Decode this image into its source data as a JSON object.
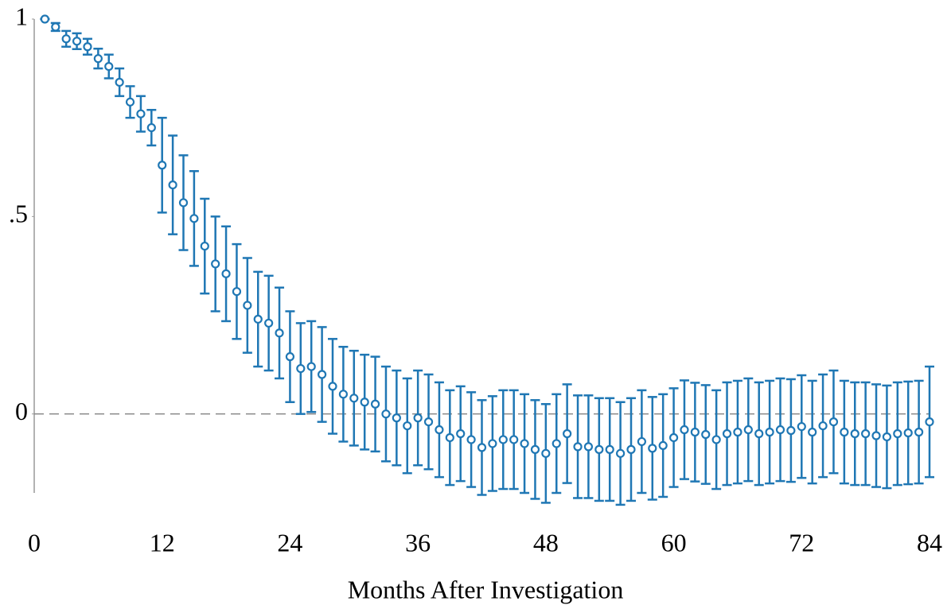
{
  "chart_data": {
    "type": "errorbar",
    "x_label": "Months After Investigation",
    "x": [
      1,
      2,
      3,
      4,
      5,
      6,
      7,
      8,
      9,
      10,
      11,
      12,
      13,
      14,
      15,
      16,
      17,
      18,
      19,
      20,
      21,
      22,
      23,
      24,
      25,
      26,
      27,
      28,
      29,
      30,
      31,
      32,
      33,
      34,
      35,
      36,
      37,
      38,
      39,
      40,
      41,
      42,
      43,
      44,
      45,
      46,
      47,
      48,
      49,
      50,
      51,
      52,
      53,
      54,
      55,
      56,
      57,
      58,
      59,
      60,
      61,
      62,
      63,
      64,
      65,
      66,
      67,
      68,
      69,
      70,
      71,
      72,
      73,
      74,
      75,
      76,
      77,
      78,
      79,
      80,
      81,
      82,
      83,
      84
    ],
    "values": [
      1,
      0.98,
      0.95,
      0.944,
      0.93,
      0.9,
      0.88,
      0.84,
      0.79,
      0.76,
      0.725,
      0.63,
      0.58,
      0.535,
      0.495,
      0.425,
      0.38,
      0.355,
      0.31,
      0.275,
      0.24,
      0.23,
      0.205,
      0.145,
      0.115,
      0.12,
      0.1,
      0.07,
      0.05,
      0.04,
      0.03,
      0.025,
      0,
      -0.01,
      -0.03,
      -0.01,
      -0.02,
      -0.04,
      -0.06,
      -0.05,
      -0.065,
      -0.085,
      -0.075,
      -0.065,
      -0.065,
      -0.075,
      -0.09,
      -0.1,
      -0.075,
      -0.05,
      -0.083,
      -0.083,
      -0.09,
      -0.09,
      -0.1,
      -0.09,
      -0.07,
      -0.087,
      -0.08,
      -0.06,
      -0.04,
      -0.046,
      -0.052,
      -0.065,
      -0.05,
      -0.046,
      -0.04,
      -0.05,
      -0.046,
      -0.04,
      -0.042,
      -0.032,
      -0.046,
      -0.03,
      -0.02,
      -0.046,
      -0.05,
      -0.05,
      -0.055,
      -0.058,
      -0.05,
      -0.048,
      -0.046,
      -0.02
    ],
    "errors": [
      0,
      0.01,
      0.02,
      0.02,
      0.02,
      0.025,
      0.03,
      0.035,
      0.04,
      0.045,
      0.045,
      0.12,
      0.125,
      0.12,
      0.12,
      0.12,
      0.12,
      0.12,
      0.12,
      0.12,
      0.12,
      0.12,
      0.115,
      0.115,
      0.115,
      0.115,
      0.12,
      0.12,
      0.12,
      0.12,
      0.12,
      0.12,
      0.12,
      0.12,
      0.12,
      0.12,
      0.12,
      0.12,
      0.12,
      0.12,
      0.12,
      0.12,
      0.12,
      0.125,
      0.125,
      0.125,
      0.125,
      0.125,
      0.125,
      0.125,
      0.13,
      0.13,
      0.13,
      0.13,
      0.13,
      0.13,
      0.13,
      0.13,
      0.13,
      0.125,
      0.125,
      0.125,
      0.125,
      0.125,
      0.13,
      0.13,
      0.13,
      0.13,
      0.13,
      0.13,
      0.13,
      0.13,
      0.13,
      0.13,
      0.13,
      0.13,
      0.13,
      0.13,
      0.13,
      0.13,
      0.13,
      0.13,
      0.13,
      0.14
    ],
    "color": "#1f77b4",
    "xlim": [
      0,
      84
    ],
    "ylim": [
      -0.2,
      1
    ],
    "xticks": [
      0,
      12,
      24,
      36,
      48,
      60,
      72,
      84
    ],
    "yticks": [
      0,
      {
        "value": 0.5,
        "label": ".5"
      },
      1
    ],
    "hline": 0
  }
}
